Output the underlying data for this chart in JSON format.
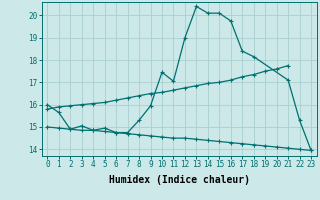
{
  "xlabel": "Humidex (Indice chaleur)",
  "bg_color": "#cce8e8",
  "grid_color": "#aacfcf",
  "line_color": "#007070",
  "xlim": [
    -0.5,
    23.5
  ],
  "ylim": [
    13.7,
    20.6
  ],
  "yticks": [
    14,
    15,
    16,
    17,
    18,
    19,
    20
  ],
  "xticks": [
    0,
    1,
    2,
    3,
    4,
    5,
    6,
    7,
    8,
    9,
    10,
    11,
    12,
    13,
    14,
    15,
    16,
    17,
    18,
    19,
    20,
    21,
    22,
    23
  ],
  "line1_x": [
    0,
    1,
    2,
    3,
    4,
    5,
    6,
    7,
    8,
    9,
    10,
    11,
    12,
    13,
    14,
    15,
    16,
    17,
    18,
    21,
    22,
    23
  ],
  "line1_y": [
    16.0,
    15.65,
    14.9,
    15.05,
    14.85,
    14.95,
    14.75,
    14.75,
    15.3,
    15.95,
    17.45,
    17.05,
    19.0,
    20.4,
    20.1,
    20.1,
    19.75,
    18.4,
    18.15,
    17.1,
    15.3,
    13.95
  ],
  "line2_x": [
    0,
    1,
    2,
    3,
    4,
    5,
    6,
    7,
    8,
    9,
    10,
    11,
    12,
    13,
    14,
    15,
    16,
    17,
    18,
    19,
    20,
    21
  ],
  "line2_y": [
    15.8,
    15.9,
    15.95,
    16.0,
    16.05,
    16.1,
    16.2,
    16.3,
    16.4,
    16.5,
    16.55,
    16.65,
    16.75,
    16.85,
    16.95,
    17.0,
    17.1,
    17.25,
    17.35,
    17.5,
    17.6,
    17.75
  ],
  "line3_x": [
    0,
    1,
    2,
    3,
    4,
    5,
    6,
    7,
    8,
    9,
    10,
    11,
    12,
    13,
    14,
    15,
    16,
    17,
    18,
    19,
    20,
    21,
    22,
    23
  ],
  "line3_y": [
    15.0,
    14.95,
    14.9,
    14.85,
    14.85,
    14.8,
    14.75,
    14.7,
    14.65,
    14.6,
    14.55,
    14.5,
    14.5,
    14.45,
    14.4,
    14.35,
    14.3,
    14.25,
    14.2,
    14.15,
    14.1,
    14.05,
    14.0,
    13.95
  ],
  "fontsize_label": 7,
  "fontsize_tick": 5.5
}
